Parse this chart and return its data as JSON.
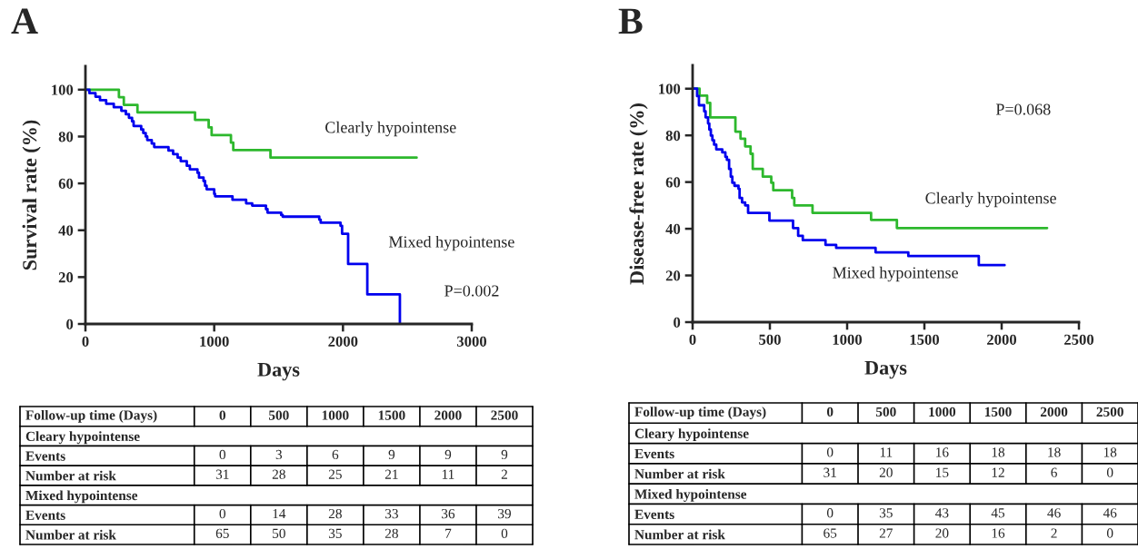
{
  "chart_data": [
    {
      "type": "step",
      "title": "A",
      "xlabel": "Days",
      "ylabel": "Survival rate (%)",
      "xlim": [
        0,
        3000
      ],
      "xticks": [
        0,
        1000,
        2000,
        3000
      ],
      "ylim": [
        0,
        110
      ],
      "yticks": [
        0,
        20,
        40,
        60,
        80,
        100
      ],
      "series": [
        {
          "name": "Clearly hypointense",
          "color": "#2db82d",
          "x": [
            0,
            260,
            298,
            404,
            851,
            957,
            980,
            1130,
            1148,
            1437,
            2572
          ],
          "values": [
            100,
            96.8,
            93.5,
            90.3,
            87.1,
            83.9,
            80.6,
            77.4,
            74.2,
            71.0,
            71.0
          ]
        },
        {
          "name": "Mixed hypointense",
          "color": "#0000ee",
          "x": [
            0,
            31,
            78,
            113,
            161,
            220,
            279,
            314,
            338,
            362,
            374,
            433,
            449,
            468,
            480,
            515,
            534,
            645,
            681,
            716,
            740,
            787,
            811,
            870,
            882,
            917,
            929,
            941,
            1000,
            1007,
            1142,
            1248,
            1295,
            1402,
            1414,
            1520,
            1532,
            1816,
            1827,
            1981,
            1993,
            2040,
            2189,
            2442
          ],
          "values": [
            100,
            98.5,
            97,
            95.5,
            94,
            92.5,
            91,
            89.5,
            88,
            86.5,
            84.5,
            83,
            81.5,
            80,
            78.5,
            77,
            75.5,
            74,
            72.5,
            71,
            69.5,
            67.5,
            66,
            64.5,
            62.5,
            61,
            59,
            57.5,
            55.5,
            54.5,
            53,
            51.5,
            50.5,
            49,
            47.5,
            46.5,
            45.8,
            44.5,
            43.2,
            41.9,
            38.5,
            25.6,
            12.6,
            0
          ]
        }
      ],
      "annotations": [
        "P=0.002"
      ]
    },
    {
      "type": "step",
      "title": "B",
      "xlabel": "Days",
      "ylabel": "Disease-free rate (%)",
      "xlim": [
        0,
        2500
      ],
      "xticks": [
        0,
        500,
        1000,
        1500,
        2000,
        2500
      ],
      "ylim": [
        0,
        110
      ],
      "yticks": [
        0,
        20,
        40,
        60,
        80,
        100
      ],
      "series": [
        {
          "name": "Clearly hypointense",
          "color": "#2db82d",
          "x": [
            0,
            45,
            94,
            114,
            277,
            310,
            340,
            375,
            389,
            454,
            509,
            522,
            644,
            658,
            776,
            1155,
            1322,
            2294
          ],
          "values": [
            100,
            97.0,
            93.9,
            87.7,
            81.6,
            78.6,
            75.3,
            72.1,
            65.6,
            62.3,
            59.7,
            56.5,
            53.2,
            50.0,
            46.8,
            43.8,
            40.3,
            40.3
          ]
        },
        {
          "name": "Mixed hypointense",
          "color": "#0000ee",
          "x": [
            0,
            29,
            41,
            75,
            84,
            100,
            108,
            118,
            128,
            139,
            153,
            192,
            212,
            222,
            236,
            247,
            257,
            271,
            297,
            304,
            320,
            340,
            359,
            497,
            650,
            683,
            713,
            860,
            929,
            1184,
            1396,
            1852,
            2019
          ],
          "values": [
            100,
            96.8,
            92.9,
            90.3,
            87.7,
            85.1,
            82.5,
            79.9,
            77.9,
            76.0,
            74.0,
            72.7,
            70.8,
            69.5,
            65.6,
            62.3,
            59.7,
            58.4,
            57.1,
            53.2,
            51.3,
            50.0,
            46.8,
            43.5,
            40.3,
            37.0,
            35.1,
            33.1,
            31.8,
            29.9,
            28.3,
            24.4,
            24.4
          ]
        }
      ],
      "annotations": [
        "P=0.068"
      ]
    },
    {
      "type": "heatmap",
      "xlabel": "Follow-up time (Days)",
      "categories": [
        "0",
        "500",
        "1000",
        "1500",
        "2000",
        "2500"
      ],
      "y_categories": [
        "Cleary hypointense",
        "Events",
        "Number at risk",
        "Mixed hypointense",
        "Events",
        "Number at risk"
      ],
      "cells": [
        null,
        [
          0,
          3,
          6,
          9,
          9,
          9
        ],
        [
          31,
          28,
          25,
          21,
          11,
          2
        ],
        null,
        [
          0,
          14,
          28,
          33,
          36,
          39
        ],
        [
          65,
          50,
          35,
          28,
          7,
          0
        ]
      ],
      "data_labels": true
    },
    {
      "type": "heatmap",
      "xlabel": "Follow-up time (Days)",
      "categories": [
        "0",
        "500",
        "1000",
        "1500",
        "2000",
        "2500"
      ],
      "y_categories": [
        "Cleary hypointense",
        "Events",
        "Number at risk",
        "Mixed hypointense",
        "Events",
        "Number at risk"
      ],
      "cells": [
        null,
        [
          0,
          11,
          16,
          18,
          18,
          18
        ],
        [
          31,
          20,
          15,
          12,
          6,
          0
        ],
        null,
        [
          0,
          35,
          43,
          45,
          46,
          46
        ],
        [
          65,
          27,
          20,
          16,
          2,
          0
        ]
      ],
      "data_labels": true
    }
  ]
}
